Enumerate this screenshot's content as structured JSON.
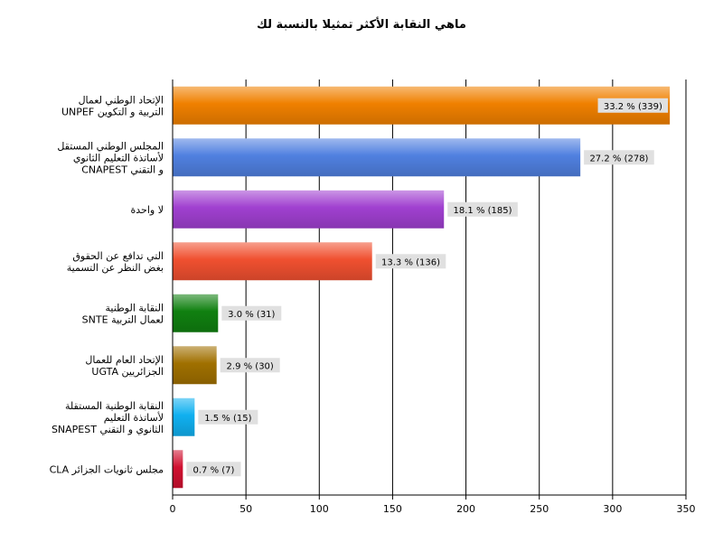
{
  "chart_data": {
    "type": "bar",
    "orientation": "horizontal",
    "title": "ماهي النقابة الأكثر تمثيلا بالنسبة لك",
    "xlabel": "",
    "ylabel": "",
    "xlim": [
      0,
      350
    ],
    "x_ticks": [
      "0",
      "50",
      "100",
      "150",
      "200",
      "250",
      "300",
      "350"
    ],
    "grid": true,
    "legend": "none",
    "categories": [
      [
        "الإتحاد الوطني لعمال",
        "UNPEF التربية و التكوين"
      ],
      [
        "المجلس الوطني المستقل",
        "لأساتذة التعليم الثانوي",
        "CNAPEST و التقني"
      ],
      [
        "لا واحدة"
      ],
      [
        "التي تدافع عن الحقوق",
        "بغض النظر عن التسمية"
      ],
      [
        "النقابة الوطنية",
        "SNTE لعمال التربية"
      ],
      [
        "الإتحاد العام للعمال",
        "UGTA  الجزائريين"
      ],
      [
        "النقابة الوطنية المستقلة",
        "لأساتذة التعليم",
        "SNAPEST الثانوي و التقني"
      ],
      [
        "CLA مجلس ثانويات الجزائر"
      ]
    ],
    "values": [
      339,
      278,
      185,
      136,
      31,
      30,
      15,
      7
    ],
    "percents": [
      33.2,
      27.2,
      18.1,
      13.3,
      3.0,
      2.9,
      1.5,
      0.7
    ],
    "data_labels": [
      "33.2 % (339)",
      "27.2 % (278)",
      "18.1 % (185)",
      "13.3 % (136)",
      "3.0 % (31)",
      "2.9 % (30)",
      "1.5 % (15)",
      "0.7 % (7)"
    ],
    "colors": [
      "#f08000",
      "#5080e0",
      "#a040d0",
      "#f05030",
      "#108010",
      "#a07000",
      "#10b0f0",
      "#d01030"
    ]
  }
}
